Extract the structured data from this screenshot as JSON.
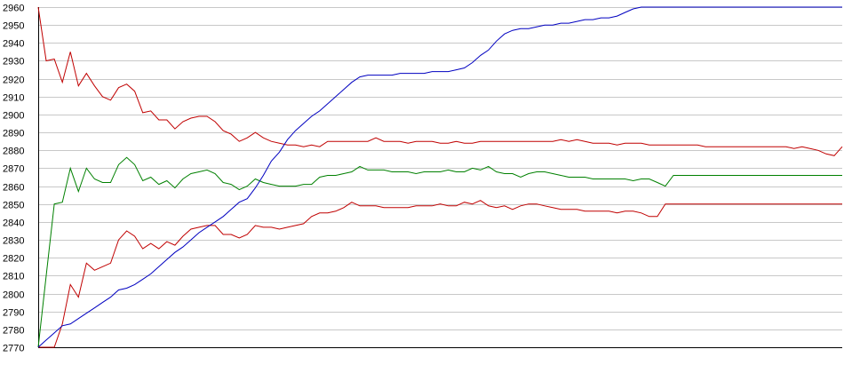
{
  "chart_data": {
    "type": "line",
    "title": "",
    "xlabel": "",
    "ylabel": "",
    "ylim": [
      2770,
      2960
    ],
    "xlim": [
      0,
      100
    ],
    "yticks": [
      2770,
      2780,
      2790,
      2800,
      2810,
      2820,
      2830,
      2840,
      2850,
      2860,
      2870,
      2880,
      2890,
      2900,
      2910,
      2920,
      2930,
      2940,
      2950,
      2960
    ],
    "grid": true,
    "legend": "none",
    "series": [
      {
        "color": "#c00000",
        "values": [
          2960,
          2930,
          2931,
          2918,
          2935,
          2916,
          2923,
          2916,
          2910,
          2908,
          2915,
          2917,
          2913,
          2901,
          2902,
          2897,
          2897,
          2892,
          2896,
          2898,
          2899,
          2899,
          2896,
          2891,
          2889,
          2885,
          2887,
          2890,
          2887,
          2885,
          2884,
          2883,
          2883,
          2882,
          2883,
          2882,
          2885,
          2885,
          2885,
          2885,
          2885,
          2885,
          2887,
          2885,
          2885,
          2885,
          2884,
          2885,
          2885,
          2885,
          2884,
          2884,
          2885,
          2884,
          2884,
          2885,
          2885,
          2885,
          2885,
          2885,
          2885,
          2885,
          2885,
          2885,
          2885,
          2886,
          2885,
          2886,
          2885,
          2884,
          2884,
          2884,
          2883,
          2884,
          2884,
          2884,
          2883,
          2883,
          2883,
          2883,
          2883,
          2883,
          2883,
          2882,
          2882,
          2882,
          2882,
          2882,
          2882,
          2882,
          2882,
          2882,
          2882,
          2882,
          2881,
          2882,
          2881,
          2880,
          2878,
          2877,
          2882
        ]
      },
      {
        "color": "#008000",
        "values": [
          2770,
          2810,
          2850,
          2851,
          2870,
          2857,
          2870,
          2864,
          2862,
          2862,
          2872,
          2876,
          2872,
          2863,
          2865,
          2861,
          2863,
          2859,
          2864,
          2867,
          2868,
          2869,
          2867,
          2862,
          2861,
          2858,
          2860,
          2864,
          2862,
          2861,
          2860,
          2860,
          2860,
          2861,
          2861,
          2865,
          2866,
          2866,
          2867,
          2868,
          2871,
          2869,
          2869,
          2869,
          2868,
          2868,
          2868,
          2867,
          2868,
          2868,
          2868,
          2869,
          2868,
          2868,
          2870,
          2869,
          2871,
          2868,
          2867,
          2867,
          2865,
          2867,
          2868,
          2868,
          2867,
          2866,
          2865,
          2865,
          2865,
          2864,
          2864,
          2864,
          2864,
          2864,
          2863,
          2864,
          2864,
          2862,
          2860,
          2866,
          2866,
          2866,
          2866,
          2866,
          2866,
          2866,
          2866,
          2866,
          2866,
          2866,
          2866,
          2866,
          2866,
          2866,
          2866,
          2866,
          2866,
          2866,
          2866,
          2866,
          2866
        ]
      },
      {
        "color": "#c00000",
        "values": [
          2770,
          2770,
          2770,
          2783,
          2805,
          2798,
          2817,
          2813,
          2815,
          2817,
          2830,
          2835,
          2832,
          2825,
          2828,
          2825,
          2829,
          2827,
          2832,
          2836,
          2837,
          2838,
          2838,
          2833,
          2833,
          2831,
          2833,
          2838,
          2837,
          2837,
          2836,
          2837,
          2838,
          2839,
          2843,
          2845,
          2845,
          2846,
          2848,
          2851,
          2849,
          2849,
          2849,
          2848,
          2848,
          2848,
          2848,
          2849,
          2849,
          2849,
          2850,
          2849,
          2849,
          2851,
          2850,
          2852,
          2849,
          2848,
          2849,
          2847,
          2849,
          2850,
          2850,
          2849,
          2848,
          2847,
          2847,
          2847,
          2846,
          2846,
          2846,
          2846,
          2845,
          2846,
          2846,
          2845,
          2843,
          2843,
          2850,
          2850,
          2850,
          2850,
          2850,
          2850,
          2850,
          2850,
          2850,
          2850,
          2850,
          2850,
          2850,
          2850,
          2850,
          2850,
          2850,
          2850,
          2850,
          2850,
          2850,
          2850,
          2850
        ]
      },
      {
        "color": "#0000c0",
        "values": [
          2770,
          2774,
          2778,
          2782,
          2783,
          2786,
          2789,
          2792,
          2795,
          2798,
          2802,
          2803,
          2805,
          2808,
          2811,
          2815,
          2819,
          2823,
          2826,
          2830,
          2834,
          2837,
          2840,
          2843,
          2847,
          2851,
          2853,
          2859,
          2866,
          2874,
          2879,
          2886,
          2891,
          2895,
          2899,
          2902,
          2906,
          2910,
          2914,
          2918,
          2921,
          2922,
          2922,
          2922,
          2922,
          2923,
          2923,
          2923,
          2923,
          2924,
          2924,
          2924,
          2925,
          2926,
          2929,
          2933,
          2936,
          2941,
          2945,
          2947,
          2948,
          2948,
          2949,
          2950,
          2950,
          2951,
          2951,
          2952,
          2953,
          2953,
          2954,
          2954,
          2955,
          2957,
          2959,
          2960,
          2960,
          2960,
          2960,
          2960,
          2960,
          2960,
          2960,
          2960,
          2960,
          2960,
          2960,
          2960,
          2960,
          2960,
          2960,
          2960,
          2960,
          2960,
          2960,
          2960,
          2960,
          2960,
          2960,
          2960,
          2960
        ]
      }
    ]
  }
}
